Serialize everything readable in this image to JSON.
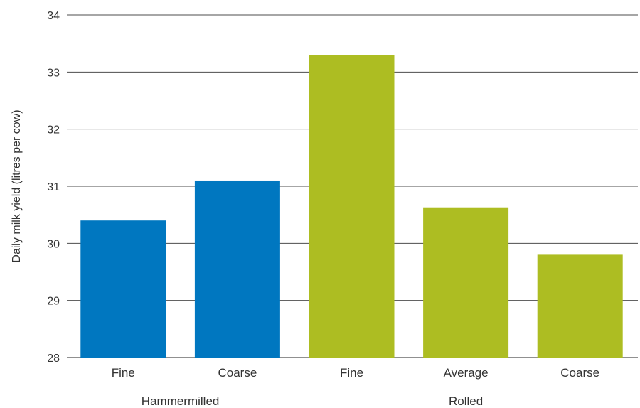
{
  "chart_data": {
    "type": "bar",
    "ylabel": "Daily milk yield (litres per cow)",
    "xlabel": "",
    "ylim": [
      28,
      34
    ],
    "yticks": [
      28,
      29,
      30,
      31,
      32,
      33,
      34
    ],
    "grid": true,
    "categories": [
      "Fine",
      "Coarse",
      "Fine",
      "Average",
      "Coarse"
    ],
    "values": [
      30.4,
      31.1,
      33.3,
      30.63,
      29.8
    ],
    "bar_colors": [
      "#0077c0",
      "#0077c0",
      "#adbd22",
      "#adbd22",
      "#adbd22"
    ],
    "groups": [
      {
        "label": "Hammermilled",
        "categories": [
          0,
          1
        ]
      },
      {
        "label": "Rolled",
        "categories": [
          2,
          3,
          4
        ]
      }
    ]
  }
}
